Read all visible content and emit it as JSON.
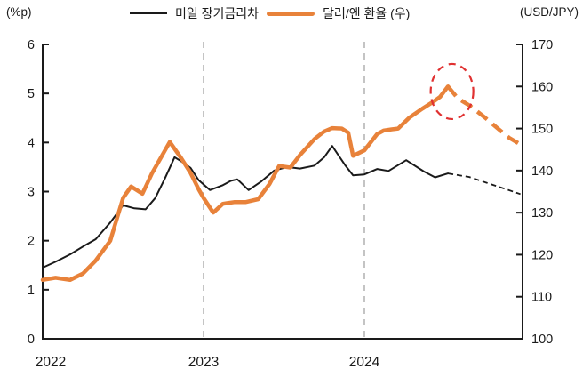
{
  "header": {
    "left_axis_unit": "(%p)",
    "right_axis_unit": "(USD/JPY)",
    "legend": [
      {
        "label": "미일 장기금리차",
        "color": "#1a1a1a",
        "line_style": "thin-solid"
      },
      {
        "label": "달러/엔 환율 (우)",
        "color": "#E8823A",
        "line_style": "thick-solid"
      }
    ]
  },
  "chart_data": {
    "type": "line",
    "title": "",
    "x_axis": {
      "tick_labels": [
        "2022",
        "2023",
        "2024"
      ],
      "range": [
        2022.0,
        2024.985
      ],
      "gridlines_at": [
        2023,
        2024
      ],
      "gridline_style": "dashed-gray"
    },
    "left_axis": {
      "unit": "(%p)",
      "ticks": [
        0,
        1,
        2,
        3,
        4,
        5,
        6
      ],
      "range": [
        0,
        6
      ]
    },
    "right_axis": {
      "unit": "(USD/JPY)",
      "ticks": [
        100,
        110,
        120,
        130,
        140,
        150,
        160,
        170
      ],
      "range": [
        100,
        170
      ]
    },
    "series": [
      {
        "name": "미일 장기금리차",
        "axis": "left",
        "color": "#1a1a1a",
        "width": 2,
        "forecast_from": 2024.52,
        "points": [
          [
            2022.0,
            1.45
          ],
          [
            2022.08,
            1.57
          ],
          [
            2022.17,
            1.72
          ],
          [
            2022.25,
            1.88
          ],
          [
            2022.33,
            2.03
          ],
          [
            2022.42,
            2.37
          ],
          [
            2022.5,
            2.72
          ],
          [
            2022.57,
            2.66
          ],
          [
            2022.64,
            2.64
          ],
          [
            2022.7,
            2.87
          ],
          [
            2022.76,
            3.27
          ],
          [
            2022.82,
            3.7
          ],
          [
            2022.86,
            3.62
          ],
          [
            2022.92,
            3.48
          ],
          [
            2022.97,
            3.23
          ],
          [
            2023.04,
            3.03
          ],
          [
            2023.12,
            3.13
          ],
          [
            2023.17,
            3.22
          ],
          [
            2023.21,
            3.25
          ],
          [
            2023.28,
            3.03
          ],
          [
            2023.36,
            3.21
          ],
          [
            2023.44,
            3.43
          ],
          [
            2023.52,
            3.5
          ],
          [
            2023.6,
            3.47
          ],
          [
            2023.69,
            3.53
          ],
          [
            2023.75,
            3.7
          ],
          [
            2023.8,
            3.93
          ],
          [
            2023.88,
            3.54
          ],
          [
            2023.93,
            3.33
          ],
          [
            2024.0,
            3.35
          ],
          [
            2024.08,
            3.46
          ],
          [
            2024.15,
            3.42
          ],
          [
            2024.26,
            3.64
          ],
          [
            2024.37,
            3.41
          ],
          [
            2024.44,
            3.29
          ],
          [
            2024.52,
            3.37
          ],
          [
            2024.65,
            3.3
          ],
          [
            2024.76,
            3.18
          ],
          [
            2024.87,
            3.06
          ],
          [
            2024.97,
            2.95
          ]
        ]
      },
      {
        "name": "달러/엔 환율 (우)",
        "axis": "right",
        "color": "#E8823A",
        "width": 4.5,
        "forecast_from": 2024.52,
        "points": [
          [
            2022.0,
            114.0
          ],
          [
            2022.08,
            114.5
          ],
          [
            2022.17,
            114.0
          ],
          [
            2022.25,
            115.5
          ],
          [
            2022.33,
            118.6
          ],
          [
            2022.42,
            123.3
          ],
          [
            2022.5,
            133.5
          ],
          [
            2022.55,
            136.2
          ],
          [
            2022.62,
            134.5
          ],
          [
            2022.68,
            139.4
          ],
          [
            2022.74,
            143.4
          ],
          [
            2022.79,
            146.8
          ],
          [
            2022.86,
            143.0
          ],
          [
            2022.92,
            139.4
          ],
          [
            2022.97,
            135.5
          ],
          [
            2023.0,
            133.5
          ],
          [
            2023.06,
            130.0
          ],
          [
            2023.12,
            132.1
          ],
          [
            2023.19,
            132.5
          ],
          [
            2023.26,
            132.5
          ],
          [
            2023.34,
            133.2
          ],
          [
            2023.41,
            136.8
          ],
          [
            2023.47,
            141.1
          ],
          [
            2023.54,
            140.7
          ],
          [
            2023.6,
            143.7
          ],
          [
            2023.69,
            147.5
          ],
          [
            2023.75,
            149.3
          ],
          [
            2023.8,
            150.1
          ],
          [
            2023.86,
            150.0
          ],
          [
            2023.9,
            149.0
          ],
          [
            2023.93,
            143.5
          ],
          [
            2024.0,
            144.8
          ],
          [
            2024.08,
            148.7
          ],
          [
            2024.12,
            149.5
          ],
          [
            2024.17,
            149.8
          ],
          [
            2024.21,
            150.0
          ],
          [
            2024.28,
            152.6
          ],
          [
            2024.36,
            154.7
          ],
          [
            2024.43,
            156.4
          ],
          [
            2024.47,
            157.5
          ],
          [
            2024.52,
            160.0
          ],
          [
            2024.58,
            157.2
          ],
          [
            2024.66,
            155.3
          ],
          [
            2024.75,
            152.6
          ],
          [
            2024.83,
            150.0
          ],
          [
            2024.9,
            147.8
          ],
          [
            2024.97,
            146.2
          ]
        ]
      }
    ],
    "annotation": {
      "type": "dashed-ellipse-highlight",
      "color": "#E03131",
      "axis": "right",
      "center_t": 2024.545,
      "center_value": 158.8,
      "meaning": "highlight of USD/JPY peak"
    },
    "legend_position": "top-center",
    "grid": "vertical-dashed-only",
    "colors": {
      "rate_diff_line": "#1a1a1a",
      "usdjpy_line": "#E8823A",
      "highlight_circle": "#E03131",
      "gridline": "#ABABAB"
    }
  }
}
